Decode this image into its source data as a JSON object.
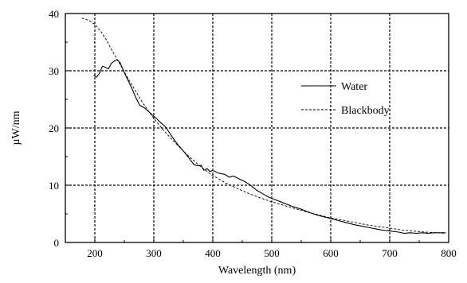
{
  "chart_data": {
    "type": "line",
    "title": "",
    "xlabel": "Wavelength (nm)",
    "ylabel": "µW/nm",
    "xlim": [
      150,
      800
    ],
    "ylim": [
      0,
      40
    ],
    "x_ticks": [
      200,
      300,
      400,
      500,
      600,
      700,
      800
    ],
    "y_ticks": [
      0,
      10,
      20,
      30,
      40
    ],
    "grid": true,
    "legend_position": "right",
    "series": [
      {
        "name": "Water",
        "style": "solid",
        "color": "#000000",
        "points": [
          [
            198,
            29.2
          ],
          [
            203,
            28.9
          ],
          [
            208,
            29.6
          ],
          [
            213,
            30.8
          ],
          [
            218,
            30.6
          ],
          [
            223,
            30.3
          ],
          [
            228,
            31.3
          ],
          [
            233,
            31.7
          ],
          [
            238,
            31.9
          ],
          [
            243,
            31.4
          ],
          [
            248,
            30.1
          ],
          [
            255,
            28.6
          ],
          [
            262,
            27.1
          ],
          [
            270,
            25.2
          ],
          [
            276,
            24.0
          ],
          [
            283,
            23.6
          ],
          [
            290,
            23.0
          ],
          [
            297,
            22.3
          ],
          [
            305,
            21.6
          ],
          [
            313,
            20.8
          ],
          [
            320,
            20.2
          ],
          [
            330,
            18.6
          ],
          [
            340,
            17.2
          ],
          [
            350,
            16.0
          ],
          [
            360,
            14.7
          ],
          [
            368,
            13.6
          ],
          [
            375,
            13.4
          ],
          [
            380,
            13.5
          ],
          [
            385,
            12.6
          ],
          [
            390,
            12.9
          ],
          [
            395,
            12.4
          ],
          [
            400,
            12.6
          ],
          [
            410,
            12.1
          ],
          [
            420,
            11.9
          ],
          [
            428,
            11.4
          ],
          [
            435,
            11.6
          ],
          [
            445,
            11.1
          ],
          [
            455,
            10.6
          ],
          [
            465,
            9.9
          ],
          [
            475,
            9.1
          ],
          [
            485,
            8.5
          ],
          [
            495,
            7.9
          ],
          [
            505,
            7.5
          ],
          [
            520,
            6.9
          ],
          [
            535,
            6.3
          ],
          [
            550,
            5.8
          ],
          [
            565,
            5.2
          ],
          [
            580,
            4.7
          ],
          [
            595,
            4.3
          ],
          [
            610,
            3.9
          ],
          [
            625,
            3.5
          ],
          [
            640,
            3.1
          ],
          [
            655,
            2.8
          ],
          [
            670,
            2.5
          ],
          [
            685,
            2.2
          ],
          [
            700,
            2.0
          ],
          [
            715,
            1.8
          ],
          [
            725,
            1.6
          ],
          [
            735,
            1.7
          ],
          [
            745,
            1.6
          ],
          [
            755,
            1.7
          ],
          [
            765,
            1.6
          ],
          [
            775,
            1.7
          ],
          [
            785,
            1.7
          ],
          [
            795,
            1.7
          ]
        ]
      },
      {
        "name": "Blackbody",
        "style": "dashed",
        "color": "#000000",
        "points": [
          [
            178,
            39.2
          ],
          [
            190,
            38.8
          ],
          [
            200,
            38.1
          ],
          [
            210,
            36.9
          ],
          [
            220,
            35.3
          ],
          [
            230,
            33.4
          ],
          [
            240,
            31.6
          ],
          [
            250,
            29.8
          ],
          [
            260,
            28.0
          ],
          [
            270,
            26.3
          ],
          [
            280,
            24.6
          ],
          [
            290,
            23.1
          ],
          [
            300,
            21.7
          ],
          [
            310,
            20.4
          ],
          [
            320,
            19.2
          ],
          [
            340,
            17.0
          ],
          [
            360,
            15.0
          ],
          [
            380,
            13.2
          ],
          [
            400,
            11.7
          ],
          [
            420,
            10.5
          ],
          [
            440,
            9.5
          ],
          [
            460,
            8.6
          ],
          [
            480,
            7.8
          ],
          [
            500,
            7.1
          ],
          [
            520,
            6.5
          ],
          [
            540,
            5.9
          ],
          [
            560,
            5.3
          ],
          [
            580,
            4.8
          ],
          [
            600,
            4.3
          ],
          [
            620,
            3.9
          ],
          [
            640,
            3.5
          ],
          [
            660,
            3.1
          ],
          [
            680,
            2.8
          ],
          [
            700,
            2.5
          ],
          [
            720,
            2.2
          ],
          [
            740,
            2.0
          ],
          [
            760,
            1.8
          ],
          [
            780,
            1.7
          ],
          [
            795,
            1.6
          ]
        ]
      }
    ]
  }
}
